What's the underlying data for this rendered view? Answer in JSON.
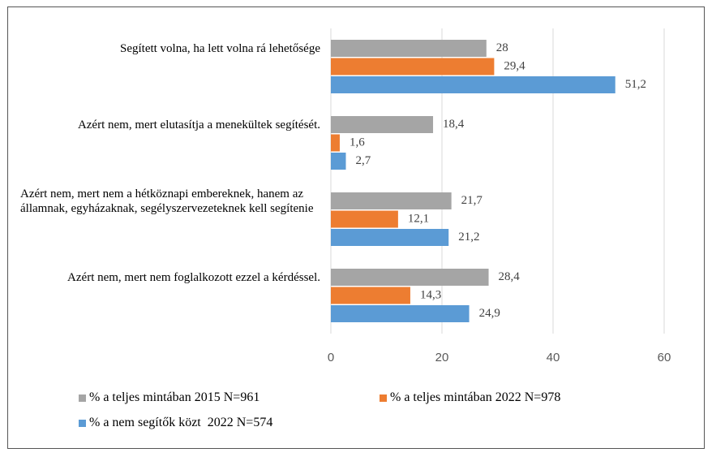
{
  "chart_data": {
    "type": "bar",
    "orientation": "horizontal",
    "categories": [
      "Segített volna, ha lett volna rá lehetősége",
      "Azért nem, mert elutasítja a menekültek segítését.",
      "Azért nem, mert nem a hétköznapi embereknek, hanem az államnak,  egyházaknak, segélyszervezeteknek kell segítenie",
      "Azért nem, mert nem foglalkozott ezzel a kérdéssel."
    ],
    "series": [
      {
        "name": "% a teljes mintában 2015 N=961",
        "color": "#a5a5a5",
        "values": [
          28,
          18.4,
          21.7,
          28.4
        ],
        "value_labels": [
          "28",
          "18,4",
          "21,7",
          "28,4"
        ]
      },
      {
        "name": "% a teljes mintában 2022 N=978",
        "color": "#ed7d31",
        "values": [
          29.4,
          1.6,
          12.1,
          14.3
        ],
        "value_labels": [
          "29,4",
          "1,6",
          "12,1",
          "14,3"
        ]
      },
      {
        "name": "% a nem segítők közt  2022 N=574",
        "color": "#5b9bd5",
        "values": [
          51.2,
          2.7,
          21.2,
          24.9
        ],
        "value_labels": [
          "51,2",
          "2,7",
          "21,2",
          "24,9"
        ]
      }
    ],
    "xlim": [
      0,
      60
    ],
    "xticks": [
      0,
      20,
      40,
      60
    ],
    "grid": true,
    "legend": "bottom"
  }
}
